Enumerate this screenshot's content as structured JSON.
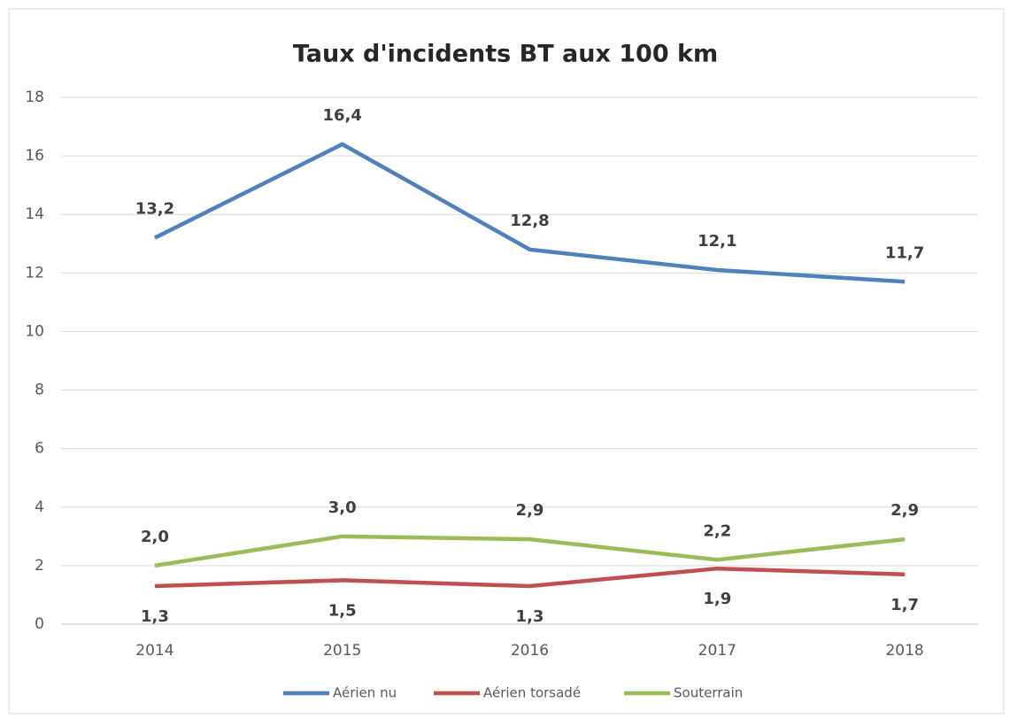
{
  "chart_data": {
    "type": "line",
    "title": "Taux d'incidents BT aux 100 km",
    "categories": [
      "2014",
      "2015",
      "2016",
      "2017",
      "2018"
    ],
    "series": [
      {
        "name": "Aérien nu",
        "color": "#4f81bd",
        "values": [
          13.2,
          16.4,
          12.8,
          12.1,
          11.7
        ],
        "value_labels": [
          "13,2",
          "16,4",
          "12,8",
          "12,1",
          "11,7"
        ]
      },
      {
        "name": "Aérien torsadé",
        "color": "#c0504d",
        "values": [
          1.3,
          1.5,
          1.3,
          1.9,
          1.7
        ],
        "value_labels": [
          "1,3",
          "1,5",
          "1,3",
          "1,9",
          "1,7"
        ]
      },
      {
        "name": "Souterrain",
        "color": "#9bbb59",
        "values": [
          2.0,
          3.0,
          2.9,
          2.2,
          2.9
        ],
        "value_labels": [
          "2,0",
          "3,0",
          "2,9",
          "2,2",
          "2,9"
        ]
      }
    ],
    "ylim": [
      0,
      18
    ],
    "yticks": [
      0,
      2,
      4,
      6,
      8,
      10,
      12,
      14,
      16,
      18
    ],
    "grid": true,
    "legend": "bottom"
  }
}
